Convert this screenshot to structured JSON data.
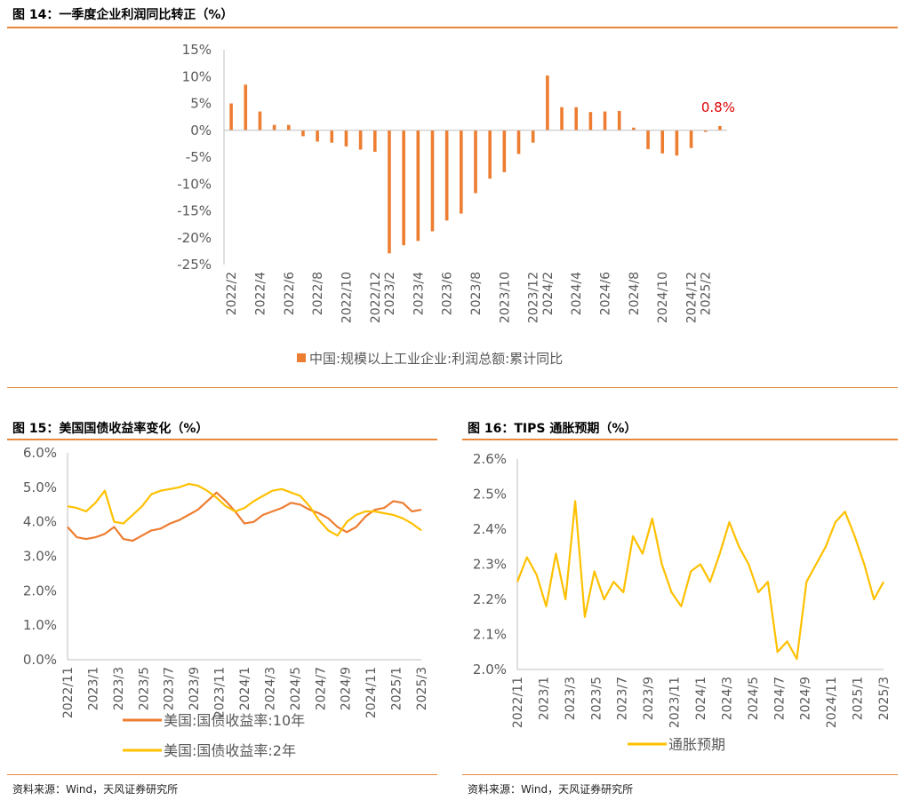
{
  "fig14": {
    "title": "图 14：一季度企业利润同比转正（%）",
    "colors": {
      "bar": "#ED7D31",
      "annotation": "#E00000",
      "axis": "#BFBFBF"
    },
    "chart_data": {
      "type": "bar",
      "title": "一季度企业利润同比转正（%）",
      "ylim": [
        -25,
        15
      ],
      "yticks": [
        "15%",
        "10%",
        "5%",
        "0%",
        "-5%",
        "-10%",
        "-15%",
        "-20%",
        "-25%"
      ],
      "ytick_values": [
        15,
        10,
        5,
        0,
        -5,
        -10,
        -15,
        -20,
        -25
      ],
      "xticks": [
        "2022/2",
        "2022/4",
        "2022/6",
        "2022/8",
        "2022/10",
        "2022/12",
        "2023/2",
        "2023/4",
        "2023/6",
        "2023/8",
        "2023/10",
        "2023/12",
        "2024/2",
        "2024/4",
        "2024/6",
        "2024/8",
        "2024/10",
        "2024/12",
        "2025/2"
      ],
      "categories": [
        "2022/2",
        "2022/3",
        "2022/4",
        "2022/5",
        "2022/6",
        "2022/7",
        "2022/8",
        "2022/9",
        "2022/10",
        "2022/11",
        "2022/12",
        "2023/2",
        "2023/3",
        "2023/4",
        "2023/5",
        "2023/6",
        "2023/7",
        "2023/8",
        "2023/9",
        "2023/10",
        "2023/11",
        "2023/12",
        "2024/2",
        "2024/3",
        "2024/4",
        "2024/5",
        "2024/6",
        "2024/7",
        "2024/8",
        "2024/9",
        "2024/10",
        "2024/11",
        "2024/12",
        "2025/2",
        "2025/3"
      ],
      "values": [
        5.0,
        8.5,
        3.5,
        1.0,
        1.0,
        -1.1,
        -2.1,
        -2.3,
        -3.0,
        -3.6,
        -4.0,
        -22.9,
        -21.4,
        -20.6,
        -18.8,
        -16.8,
        -15.5,
        -11.7,
        -9.0,
        -7.8,
        -4.4,
        -2.3,
        10.2,
        4.3,
        4.3,
        3.4,
        3.5,
        3.6,
        0.5,
        -3.5,
        -4.3,
        -4.7,
        -3.3,
        -0.3,
        0.8
      ],
      "annotation": "0.8%",
      "legend": [
        "中国:规模以上工业企业:利润总额:累计同比"
      ]
    }
  },
  "fig15": {
    "title": "图 15：美国国债收益率变化（%）",
    "colors": {
      "s10": "#ED7D31",
      "s2": "#FFC000"
    },
    "chart_data": {
      "type": "line",
      "title": "美国国债收益率变化（%）",
      "ylim": [
        0,
        6
      ],
      "yticks": [
        "6.0%",
        "5.0%",
        "4.0%",
        "3.0%",
        "2.0%",
        "1.0%",
        "0.0%"
      ],
      "ytick_values": [
        6,
        5,
        4,
        3,
        2,
        1,
        0
      ],
      "xticks": [
        "2022/11",
        "2023/1",
        "2023/3",
        "2023/5",
        "2023/7",
        "2023/9",
        "2023/11",
        "2024/1",
        "2024/3",
        "2024/5",
        "2024/7",
        "2024/9",
        "2024/11",
        "2025/1",
        "2025/3"
      ],
      "series": [
        {
          "name": "美国:国债收益率:10年",
          "values": [
            3.85,
            3.55,
            3.5,
            3.55,
            3.65,
            3.85,
            3.5,
            3.45,
            3.6,
            3.75,
            3.8,
            3.95,
            4.05,
            4.2,
            4.35,
            4.6,
            4.85,
            4.6,
            4.3,
            3.95,
            4.0,
            4.2,
            4.3,
            4.4,
            4.55,
            4.5,
            4.35,
            4.25,
            4.1,
            3.85,
            3.7,
            3.85,
            4.15,
            4.35,
            4.4,
            4.6,
            4.55,
            4.3,
            4.35
          ]
        },
        {
          "name": "美国:国债收益率:2年",
          "values": [
            4.45,
            4.4,
            4.3,
            4.55,
            4.9,
            4.0,
            3.95,
            4.2,
            4.45,
            4.8,
            4.9,
            4.95,
            5.0,
            5.1,
            5.05,
            4.9,
            4.7,
            4.45,
            4.3,
            4.4,
            4.6,
            4.75,
            4.9,
            4.95,
            4.85,
            4.75,
            4.45,
            4.05,
            3.75,
            3.6,
            4.0,
            4.2,
            4.3,
            4.3,
            4.25,
            4.2,
            4.1,
            3.95,
            3.75
          ]
        }
      ],
      "legend": [
        "美国:国债收益率:10年",
        "美国:国债收益率:2年"
      ]
    },
    "source": "资料来源：Wind，天风证券研究所"
  },
  "fig16": {
    "title": "图 16：TIPS 通胀预期（%）",
    "colors": {
      "s": "#FFC000"
    },
    "chart_data": {
      "type": "line",
      "title": "TIPS 通胀预期（%）",
      "ylim": [
        2.0,
        2.6
      ],
      "yticks": [
        "2.6%",
        "2.5%",
        "2.4%",
        "2.3%",
        "2.2%",
        "2.1%",
        "2.0%"
      ],
      "ytick_values": [
        2.6,
        2.5,
        2.4,
        2.3,
        2.2,
        2.1,
        2.0
      ],
      "xticks": [
        "2022/11",
        "2023/1",
        "2023/3",
        "2023/5",
        "2023/7",
        "2023/9",
        "2023/11",
        "2024/1",
        "2024/3",
        "2024/5",
        "2024/7",
        "2024/9",
        "2024/11",
        "2025/1",
        "2025/3"
      ],
      "series": [
        {
          "name": "通胀预期",
          "values": [
            2.25,
            2.32,
            2.27,
            2.18,
            2.33,
            2.2,
            2.48,
            2.15,
            2.28,
            2.2,
            2.25,
            2.22,
            2.38,
            2.33,
            2.43,
            2.3,
            2.22,
            2.18,
            2.28,
            2.3,
            2.25,
            2.33,
            2.42,
            2.35,
            2.3,
            2.22,
            2.25,
            2.05,
            2.08,
            2.03,
            2.25,
            2.3,
            2.35,
            2.42,
            2.45,
            2.38,
            2.3,
            2.2,
            2.25
          ]
        }
      ],
      "legend": [
        "通胀预期"
      ]
    },
    "source": "资料来源：Wind，天风证券研究所"
  }
}
